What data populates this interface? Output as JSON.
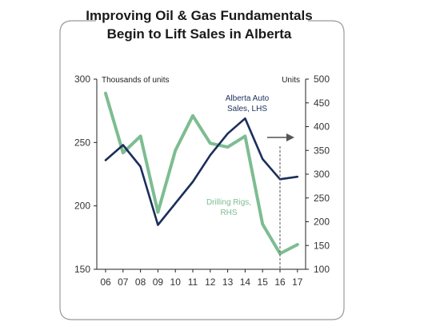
{
  "chart_data": {
    "type": "line",
    "title": "Improving Oil & Gas Fundamentals Begin to Lift Sales in Alberta",
    "title_lines": [
      "Improving Oil & Gas Fundamentals",
      "Begin to Lift Sales in Alberta"
    ],
    "x": [
      "06",
      "07",
      "08",
      "09",
      "10",
      "11",
      "12",
      "13",
      "14",
      "15",
      "16",
      "17"
    ],
    "left_axis": {
      "label": "Thousands of units",
      "ylim": [
        150,
        300
      ],
      "ticks": [
        150,
        200,
        250,
        300
      ]
    },
    "right_axis": {
      "label": "Units",
      "ylim": [
        100,
        500
      ],
      "ticks": [
        100,
        150,
        200,
        250,
        300,
        350,
        400,
        450,
        500
      ]
    },
    "series": [
      {
        "name": "Alberta Auto Sales, LHS",
        "label_lines": [
          "Alberta Auto",
          "Sales, LHS"
        ],
        "axis": "left",
        "color": "#1b2f5c",
        "values": [
          236,
          248,
          231,
          185,
          202,
          219,
          240,
          257,
          269,
          237,
          221,
          223
        ]
      },
      {
        "name": "Drilling Rigs, RHS",
        "label_lines": [
          "Drilling Rigs,",
          "RHS"
        ],
        "axis": "right",
        "color": "#7dbd91",
        "values": [
          470,
          345,
          380,
          220,
          350,
          423,
          365,
          357,
          380,
          195,
          133,
          152
        ]
      }
    ],
    "grid": false,
    "colors": {
      "frame": "#999999",
      "axis": "#222222",
      "marker": "#555555"
    }
  }
}
